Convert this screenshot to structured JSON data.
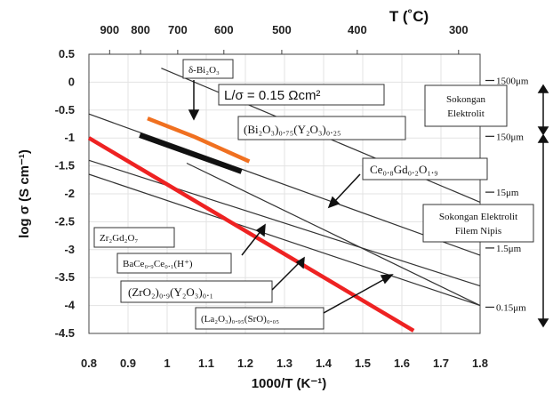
{
  "chart_data": {
    "type": "line",
    "xlabel": "1000/T (K⁻¹)",
    "ylabel": "log σ (S cm⁻¹)",
    "toplabel": "T (˚C)",
    "xlim": [
      0.8,
      1.8
    ],
    "ylim": [
      -4.5,
      0.5
    ],
    "x_ticks": [
      "0.8",
      "0.9",
      "1",
      "1.1",
      "1.2",
      "1.3",
      "1.4",
      "1.5",
      "1.6",
      "1.7",
      "1.8"
    ],
    "y_ticks": [
      "0.5",
      "0",
      "-0.5",
      "-1",
      "-1.5",
      "-2",
      "-2.5",
      "-3",
      "-3.5",
      "-4",
      "-4.5"
    ],
    "top_ticks": [
      {
        "label": "900",
        "x": 0.853
      },
      {
        "label": "800",
        "x": 0.932
      },
      {
        "label": "700",
        "x": 1.027
      },
      {
        "label": "600",
        "x": 1.145
      },
      {
        "label": "500",
        "x": 1.293
      },
      {
        "label": "400",
        "x": 1.486
      },
      {
        "label": "300",
        "x": 1.745
      }
    ],
    "thickness_marks": [
      {
        "label": "1500μm",
        "y": 0.03
      },
      {
        "label": "150μm",
        "y": -0.97
      },
      {
        "label": "15μm",
        "y": -1.97
      },
      {
        "label": "1.5μm",
        "y": -2.97
      },
      {
        "label": "0.15μm",
        "y": -4.03
      }
    ],
    "series": [
      {
        "x": [
          0.8,
          1.8
        ],
        "y": [
          -0.57,
          -3.1
        ],
        "color": "#333333"
      },
      {
        "x": [
          0.8,
          1.8
        ],
        "y": [
          -1.4,
          -3.65
        ],
        "color": "#333333"
      },
      {
        "x": [
          0.8,
          1.8
        ],
        "y": [
          -1.65,
          -4.0
        ],
        "color": "#333333"
      },
      {
        "x": [
          0.8,
          1.63
        ],
        "y": [
          -1.0,
          -4.45
        ],
        "color": "#ee2222"
      },
      {
        "x": [
          0.95,
          1.07,
          1.21
        ],
        "y": [
          -0.65,
          -0.98,
          -1.42
        ],
        "color": "#f07020"
      },
      {
        "x": [
          0.93,
          1.19
        ],
        "y": [
          -0.95,
          -1.6
        ],
        "color": "#111111"
      },
      {
        "x": [
          0.985,
          1.8
        ],
        "y": [
          0.25,
          -2.15
        ],
        "color": "#333333"
      },
      {
        "x": [
          1.05,
          1.8
        ],
        "y": [
          -1.45,
          -4.0
        ],
        "color": "#333333"
      }
    ],
    "annotations": {
      "delta": "δ-Bi₂O₃",
      "ls": "L/σ = 0.15 Ωcm²",
      "bi": "(Bi₂O₃)₀.₇₅(Y₂O₃)₀.₂₅",
      "ce": "Ce₀.₈Gd₀.₂O₁.₉",
      "zr": "Zr₂Gd₂O₇",
      "bace": "BaCe₀.₉Ce₀.₁(H⁺)",
      "zro": "(ZrO₂)₀.₉(Y₂O₃)₀.₁",
      "la": "(La₂O₃)₀.₉₅(SrO)₀.₀₅",
      "sok1a": "Sokongan",
      "sok1b": "Elektrolit",
      "sok2a": "Sokongan Elektrolit",
      "sok2b": "Filem Nipis"
    }
  }
}
